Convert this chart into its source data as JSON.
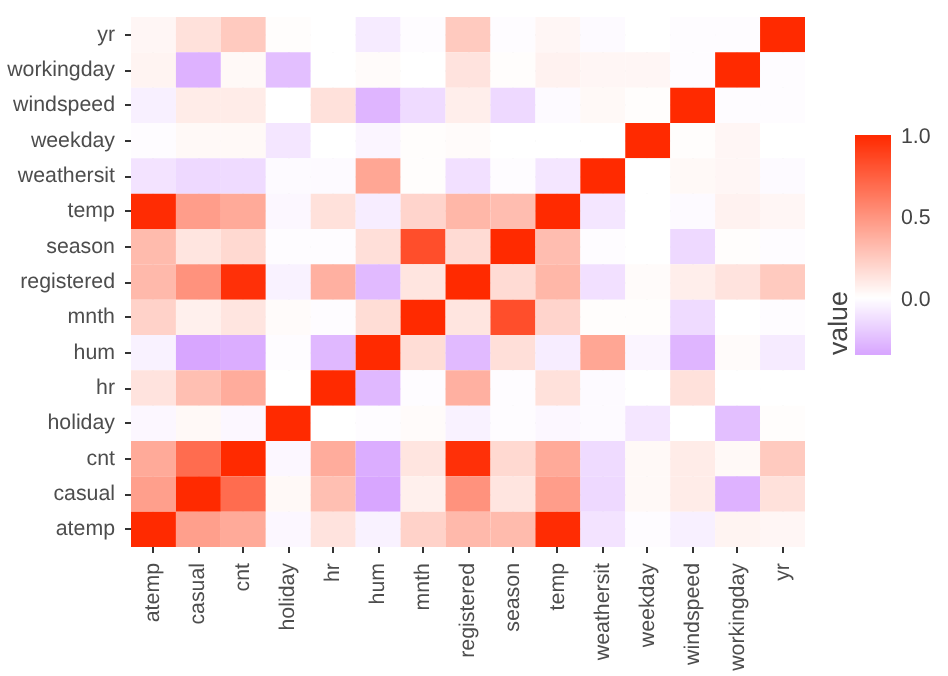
{
  "chart_data": {
    "type": "heatmap",
    "legend_title": "value",
    "categories": [
      "atemp",
      "casual",
      "cnt",
      "holiday",
      "hr",
      "hum",
      "mnth",
      "registered",
      "season",
      "temp",
      "weathersit",
      "weekday",
      "windspeed",
      "workingday",
      "yr"
    ],
    "y_categories": [
      "yr",
      "workingday",
      "windspeed",
      "weekday",
      "weathersit",
      "temp",
      "season",
      "registered",
      "mnth",
      "hum",
      "hr",
      "holiday",
      "cnt",
      "casual",
      "atemp"
    ],
    "cells": [
      [
        0.04,
        0.14,
        0.25,
        0.01,
        0,
        -0.08,
        -0.01,
        0.25,
        -0.01,
        0.04,
        -0.02,
        0,
        -0.01,
        -0.01,
        1
      ],
      [
        0.05,
        -0.3,
        0.03,
        -0.25,
        0,
        0.02,
        0,
        0.13,
        0.01,
        0.06,
        0.04,
        0.04,
        -0.01,
        1,
        -0.01
      ],
      [
        -0.06,
        0.09,
        0.09,
        0,
        0.14,
        -0.29,
        -0.14,
        0.08,
        -0.15,
        -0.02,
        0.03,
        0.01,
        1,
        -0.01,
        -0.01
      ],
      [
        -0.01,
        0.03,
        0.03,
        -0.1,
        0,
        -0.04,
        0.01,
        0.02,
        0,
        0,
        0,
        1,
        0.01,
        0.04,
        0
      ],
      [
        -0.11,
        -0.15,
        -0.14,
        -0.02,
        -0.02,
        0.42,
        0.01,
        -0.12,
        -0.01,
        -0.1,
        1,
        0,
        0.03,
        0.04,
        -0.02
      ],
      [
        0.99,
        0.46,
        0.4,
        -0.03,
        0.14,
        -0.07,
        0.2,
        0.34,
        0.31,
        1,
        -0.1,
        0,
        -0.02,
        0.06,
        0.04
      ],
      [
        0.32,
        0.12,
        0.18,
        -0.01,
        -0.01,
        0.15,
        0.83,
        0.17,
        1,
        0.31,
        -0.01,
        0,
        -0.15,
        0.01,
        -0.01
      ],
      [
        0.33,
        0.51,
        0.97,
        -0.05,
        0.37,
        -0.27,
        0.12,
        1,
        0.17,
        0.34,
        -0.12,
        0.02,
        0.08,
        0.13,
        0.25
      ],
      [
        0.21,
        0.07,
        0.12,
        0.02,
        -0.01,
        0.16,
        1,
        0.12,
        0.83,
        0.2,
        0.01,
        0.01,
        -0.14,
        0,
        -0.01
      ],
      [
        -0.05,
        -0.35,
        -0.32,
        -0.01,
        -0.28,
        1,
        0.16,
        -0.27,
        0.15,
        -0.07,
        0.42,
        -0.04,
        -0.29,
        0.02,
        -0.08
      ],
      [
        0.13,
        0.3,
        0.39,
        0,
        1,
        -0.28,
        -0.01,
        0.37,
        -0.01,
        0.14,
        -0.02,
        0,
        0.14,
        0,
        0
      ],
      [
        -0.03,
        0.03,
        -0.03,
        1,
        0,
        -0.01,
        0.02,
        -0.05,
        -0.01,
        -0.03,
        -0.02,
        -0.1,
        0,
        -0.25,
        0.01
      ],
      [
        0.4,
        0.69,
        1,
        -0.03,
        0.39,
        -0.32,
        0.12,
        0.97,
        0.18,
        0.4,
        -0.14,
        0.03,
        0.09,
        0.03,
        0.25
      ],
      [
        0.45,
        1,
        0.69,
        0.03,
        0.3,
        -0.35,
        0.07,
        0.51,
        0.12,
        0.46,
        -0.15,
        0.03,
        0.09,
        -0.3,
        0.14
      ],
      [
        1,
        0.45,
        0.4,
        -0.03,
        0.13,
        -0.05,
        0.21,
        0.33,
        0.32,
        0.99,
        -0.11,
        -0.01,
        -0.06,
        0.05,
        0.04
      ]
    ],
    "colors": [
      "#9000ff",
      "#ffffff",
      "#ff2a00"
    ],
    "clim": [
      -0.35,
      1
    ],
    "cticks": [
      {
        "value": 0,
        "label": "0.0"
      },
      {
        "value": 0.5,
        "label": "0.5"
      },
      {
        "value": 1,
        "label": "1.0"
      }
    ],
    "grid": true
  }
}
